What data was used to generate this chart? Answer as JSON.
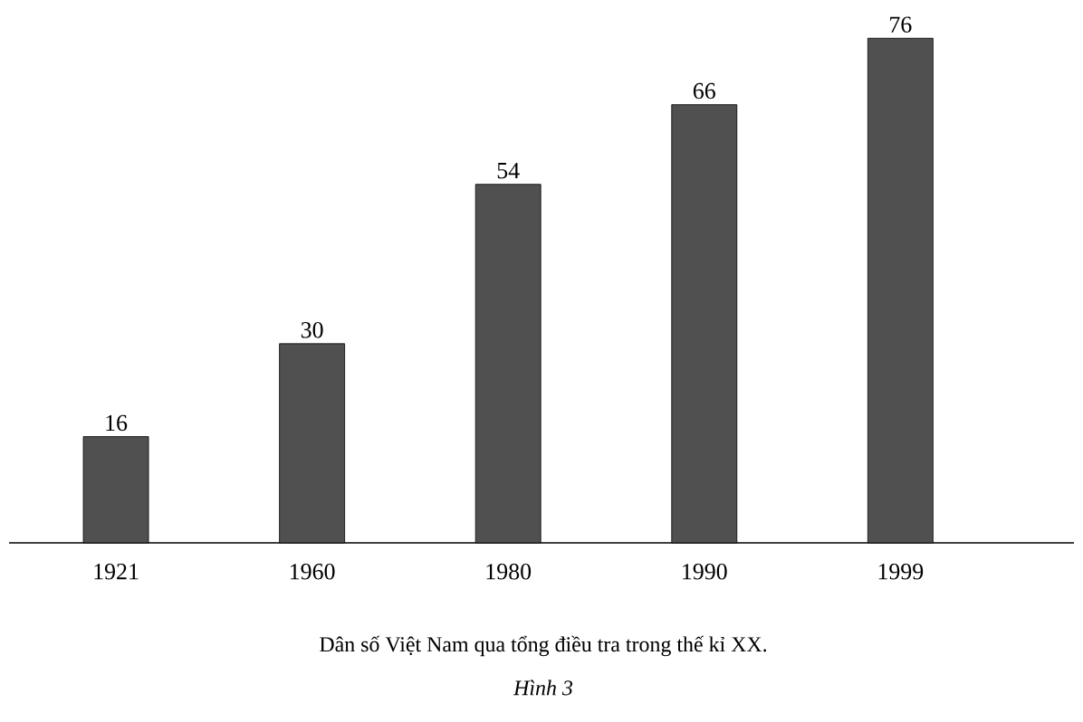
{
  "chart_data": {
    "type": "bar",
    "title": "Dân số Việt Nam qua tổng điều tra trong thế kỉ XX.",
    "annotations": [
      "Hình 3"
    ],
    "categories": [
      "1921",
      "1960",
      "1980",
      "1990",
      "1999"
    ],
    "values": [
      16,
      30,
      54,
      66,
      76
    ],
    "color": "#505050",
    "data_labels": true
  }
}
